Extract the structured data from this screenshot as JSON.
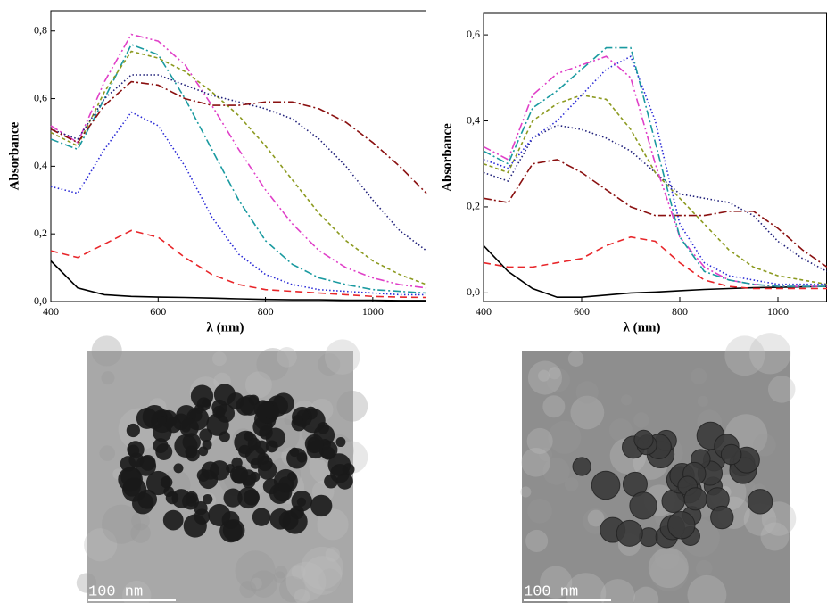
{
  "chart_data": [
    {
      "type": "line",
      "y_label": "Absorbance",
      "x_label": "λ (nm)",
      "x": [
        400,
        450,
        500,
        550,
        600,
        650,
        700,
        750,
        800,
        850,
        900,
        950,
        1000,
        1050,
        1100
      ],
      "xlim": [
        400,
        1100
      ],
      "xticks": [
        400,
        600,
        800,
        1000
      ],
      "ylim": [
        0,
        0.86
      ],
      "yticks": [
        {
          "value": 0,
          "label": "0,0"
        },
        {
          "value": 0.2,
          "label": "0,2"
        },
        {
          "value": 0.4,
          "label": "0,4"
        },
        {
          "value": 0.6,
          "label": "0,6"
        },
        {
          "value": 0.8,
          "label": "0,8"
        }
      ],
      "series": [
        {
          "color": "#000000",
          "style": "solid",
          "values": [
            0.12,
            0.04,
            0.02,
            0.015,
            0.013,
            0.012,
            0.01,
            0.008,
            0.006,
            0.005,
            0.005,
            0.004,
            0.004,
            0.003,
            0.003
          ]
        },
        {
          "color": "#e8262a",
          "style": "dashed",
          "values": [
            0.15,
            0.13,
            0.17,
            0.21,
            0.19,
            0.13,
            0.08,
            0.05,
            0.035,
            0.03,
            0.025,
            0.02,
            0.015,
            0.013,
            0.012
          ]
        },
        {
          "color": "#2a2ad6",
          "style": "dotted",
          "values": [
            0.34,
            0.32,
            0.45,
            0.56,
            0.52,
            0.4,
            0.25,
            0.14,
            0.08,
            0.05,
            0.035,
            0.03,
            0.025,
            0.02,
            0.02
          ]
        },
        {
          "color": "#1a9aa0",
          "style": "dashdot",
          "values": [
            0.48,
            0.45,
            0.6,
            0.76,
            0.73,
            0.6,
            0.45,
            0.3,
            0.18,
            0.11,
            0.07,
            0.05,
            0.035,
            0.03,
            0.025
          ]
        },
        {
          "color": "#e040c8",
          "style": "dashdotdot",
          "values": [
            0.52,
            0.47,
            0.65,
            0.79,
            0.77,
            0.7,
            0.58,
            0.45,
            0.33,
            0.23,
            0.15,
            0.1,
            0.07,
            0.05,
            0.04
          ]
        },
        {
          "color": "#8c9a20",
          "style": "shortdash",
          "values": [
            0.5,
            0.46,
            0.62,
            0.74,
            0.72,
            0.68,
            0.62,
            0.55,
            0.46,
            0.36,
            0.26,
            0.18,
            0.12,
            0.08,
            0.05
          ]
        },
        {
          "color": "#20207a",
          "style": "dotted",
          "values": [
            0.51,
            0.48,
            0.6,
            0.67,
            0.67,
            0.64,
            0.61,
            0.59,
            0.57,
            0.54,
            0.48,
            0.4,
            0.3,
            0.21,
            0.15
          ]
        },
        {
          "color": "#8a1010",
          "style": "dashdot",
          "values": [
            0.51,
            0.47,
            0.58,
            0.65,
            0.64,
            0.6,
            0.58,
            0.58,
            0.59,
            0.59,
            0.57,
            0.53,
            0.47,
            0.4,
            0.32
          ]
        }
      ]
    },
    {
      "type": "line",
      "y_label": "Absorbance",
      "x_label": "λ (nm)",
      "x": [
        400,
        450,
        500,
        550,
        600,
        650,
        700,
        750,
        800,
        850,
        900,
        950,
        1000,
        1050,
        1100
      ],
      "xlim": [
        400,
        1100
      ],
      "xticks": [
        400,
        600,
        800,
        1000
      ],
      "ylim": [
        -0.02,
        0.65
      ],
      "yticks": [
        {
          "value": 0,
          "label": "0,0"
        },
        {
          "value": 0.2,
          "label": "0,2"
        },
        {
          "value": 0.4,
          "label": "0,4"
        },
        {
          "value": 0.6,
          "label": "0,6"
        }
      ],
      "series": [
        {
          "color": "#000000",
          "style": "solid",
          "values": [
            0.11,
            0.05,
            0.01,
            -0.01,
            -0.01,
            -0.005,
            0,
            0.002,
            0.005,
            0.008,
            0.01,
            0.012,
            0.013,
            0.014,
            0.015
          ]
        },
        {
          "color": "#e8262a",
          "style": "dashed",
          "values": [
            0.07,
            0.06,
            0.06,
            0.07,
            0.08,
            0.11,
            0.13,
            0.12,
            0.07,
            0.03,
            0.015,
            0.01,
            0.01,
            0.01,
            0.01
          ]
        },
        {
          "color": "#8a1010",
          "style": "dashdot",
          "values": [
            0.22,
            0.21,
            0.3,
            0.31,
            0.28,
            0.24,
            0.2,
            0.18,
            0.18,
            0.18,
            0.19,
            0.19,
            0.15,
            0.1,
            0.06
          ]
        },
        {
          "color": "#20207a",
          "style": "dotted",
          "values": [
            0.28,
            0.26,
            0.36,
            0.39,
            0.38,
            0.36,
            0.33,
            0.28,
            0.23,
            0.22,
            0.21,
            0.18,
            0.12,
            0.08,
            0.05
          ]
        },
        {
          "color": "#8c9a20",
          "style": "shortdash",
          "values": [
            0.3,
            0.28,
            0.4,
            0.44,
            0.46,
            0.45,
            0.38,
            0.28,
            0.22,
            0.16,
            0.1,
            0.06,
            0.04,
            0.03,
            0.02
          ]
        },
        {
          "color": "#2a2ad6",
          "style": "dotted",
          "values": [
            0.31,
            0.29,
            0.36,
            0.4,
            0.46,
            0.52,
            0.55,
            0.4,
            0.16,
            0.07,
            0.04,
            0.03,
            0.02,
            0.02,
            0.02
          ]
        },
        {
          "color": "#e040c8",
          "style": "dashdotdot",
          "values": [
            0.34,
            0.31,
            0.46,
            0.51,
            0.53,
            0.55,
            0.5,
            0.3,
            0.13,
            0.06,
            0.03,
            0.02,
            0.015,
            0.015,
            0.015
          ]
        },
        {
          "color": "#1a9aa0",
          "style": "dashdot",
          "values": [
            0.33,
            0.3,
            0.43,
            0.47,
            0.52,
            0.57,
            0.57,
            0.35,
            0.13,
            0.05,
            0.03,
            0.02,
            0.015,
            0.015,
            0.015
          ]
        }
      ]
    }
  ],
  "images": [
    {
      "scale_label": "100 nm"
    },
    {
      "scale_label": "100 nm"
    }
  ]
}
